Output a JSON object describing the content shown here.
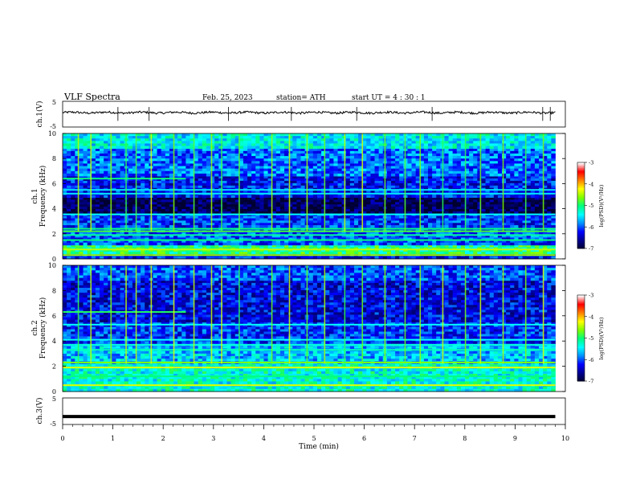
{
  "header": {
    "title": "VLF  Spectra",
    "date": "Feb. 25, 2023",
    "station": "station= ATH",
    "start_ut": "start  UT  =   4  : 30 : 1"
  },
  "panels": {
    "ch1": {
      "ylabel": "ch.1(V)",
      "ticks": [
        "5",
        "-5"
      ]
    },
    "spec1": {
      "ylabel_top": "ch.1",
      "ylabel_bottom": "Frequency  (kHz)",
      "ticks": [
        "10",
        "8",
        "6",
        "4",
        "2",
        "0"
      ]
    },
    "spec2": {
      "ylabel_top": "ch.2",
      "ylabel_bottom": "Frequency  (kHz)",
      "ticks": [
        "10",
        "8",
        "6",
        "4",
        "2",
        "0"
      ]
    },
    "ch3": {
      "ylabel": "ch.3(V)",
      "ticks": [
        "5",
        "-5"
      ]
    }
  },
  "xaxis": {
    "label": "Time  (min)",
    "ticks": [
      "0",
      "1",
      "2",
      "3",
      "4",
      "5",
      "6",
      "7",
      "8",
      "9",
      "10"
    ]
  },
  "colorbars": [
    {
      "label": "log(PSD)(V²/Hz)",
      "ticks": [
        "-3",
        "-4",
        "-5",
        "-6",
        "-7"
      ]
    },
    {
      "label": "log(PSD)(V²/Hz)",
      "ticks": [
        "-3",
        "-4",
        "-5",
        "-6",
        "-7"
      ]
    }
  ],
  "colors": {
    "colormap": [
      "#000030",
      "#000090",
      "#0000ff",
      "#0090ff",
      "#00ffff",
      "#00ff80",
      "#80ff00",
      "#ffff00",
      "#ff8000",
      "#ff0000",
      "#ffffff"
    ],
    "waveform": "#000000"
  },
  "chart_data": [
    {
      "type": "line",
      "panel": "ch.1(V)",
      "xlim": [
        0,
        10
      ],
      "ylim": [
        -5,
        5
      ],
      "x_range_data": [
        0,
        9.8
      ],
      "mean_level": 0.6,
      "noise_amplitude": 0.7,
      "spikes": [
        1.1,
        1.72,
        3.3,
        4.55,
        5.85,
        7.35,
        9.55,
        9.7
      ]
    },
    {
      "type": "heatmap",
      "panel": "ch.1 Frequency (kHz)",
      "xlim": [
        0,
        10
      ],
      "ylim": [
        0,
        10
      ],
      "x_range_data": [
        0,
        9.8
      ],
      "color_range_log_psd": [
        -7,
        -3
      ],
      "bands": [
        {
          "f_low": 0.0,
          "f_high": 0.4,
          "level": -6.2
        },
        {
          "f_low": 0.4,
          "f_high": 1.1,
          "level": -5.0
        },
        {
          "f_low": 1.1,
          "f_high": 2.5,
          "level": -6.0
        },
        {
          "f_low": 2.5,
          "f_high": 3.6,
          "level": -6.1
        },
        {
          "f_low": 3.6,
          "f_high": 4.9,
          "level": -6.85
        },
        {
          "f_low": 4.9,
          "f_high": 6.6,
          "level": -6.2
        },
        {
          "f_low": 6.6,
          "f_high": 8.8,
          "level": -5.9
        },
        {
          "f_low": 8.8,
          "f_high": 10.0,
          "level": -5.4
        }
      ],
      "lines": [
        {
          "freq": 0.3,
          "level": -4.5
        },
        {
          "freq": 0.75,
          "level": -4.4
        },
        {
          "freq": 1.5,
          "level": -5.0
        },
        {
          "freq": 1.9,
          "level": -5.1
        },
        {
          "freq": 2.2,
          "level": -4.8
        },
        {
          "freq": 2.4,
          "level": -5.0
        },
        {
          "freq": 3.55,
          "level": -5.4
        },
        {
          "freq": 5.2,
          "level": -5.5
        },
        {
          "freq": 5.5,
          "level": -5.5
        },
        {
          "freq": 6.4,
          "level": -5.0,
          "t_end": 2.45
        }
      ],
      "events": [
        0.3,
        0.55,
        0.95,
        1.25,
        1.45,
        1.75,
        2.2,
        2.6,
        2.95,
        3.15,
        3.5,
        4.15,
        4.5,
        4.85,
        5.2,
        5.6,
        5.95,
        6.4,
        6.8,
        7.1,
        7.55,
        8.0,
        8.3,
        8.75,
        9.2,
        9.55
      ]
    },
    {
      "type": "heatmap",
      "panel": "ch.2 Frequency (kHz)",
      "xlim": [
        0,
        10
      ],
      "ylim": [
        0,
        10
      ],
      "x_range_data": [
        0,
        9.8
      ],
      "color_range_log_psd": [
        -7,
        -3
      ],
      "bands": [
        {
          "f_low": 0.0,
          "f_high": 0.6,
          "level": -5.3
        },
        {
          "f_low": 0.6,
          "f_high": 2.2,
          "level": -5.3
        },
        {
          "f_low": 2.2,
          "f_high": 3.8,
          "level": -5.6
        },
        {
          "f_low": 3.8,
          "f_high": 5.5,
          "level": -6.1
        },
        {
          "f_low": 5.5,
          "f_high": 8.8,
          "level": -6.3
        },
        {
          "f_low": 8.8,
          "f_high": 10.0,
          "level": -6.0
        }
      ],
      "lines": [
        {
          "freq": 0.5,
          "level": -4.3
        },
        {
          "freq": 1.2,
          "level": -5.0
        },
        {
          "freq": 1.9,
          "level": -4.3
        },
        {
          "freq": 2.3,
          "level": -4.6
        },
        {
          "freq": 3.3,
          "level": -5.2
        },
        {
          "freq": 3.7,
          "level": -5.3
        },
        {
          "freq": 4.1,
          "level": -5.4
        },
        {
          "freq": 5.3,
          "level": -5.4
        },
        {
          "freq": 6.3,
          "level": -4.9,
          "t_end": 2.45
        }
      ],
      "events": [
        0.3,
        0.55,
        0.95,
        1.25,
        1.45,
        1.75,
        2.2,
        2.6,
        2.95,
        3.15,
        3.5,
        4.15,
        4.5,
        4.85,
        5.2,
        5.6,
        5.95,
        6.4,
        6.8,
        7.1,
        7.55,
        8.0,
        8.3,
        8.75,
        9.2,
        9.55
      ]
    },
    {
      "type": "line",
      "panel": "ch.3(V)",
      "xlim": [
        0,
        10
      ],
      "ylim": [
        -5,
        5
      ],
      "x_range_data": [
        0,
        9.8
      ],
      "mean_level": -2.0,
      "noise_amplitude": 0.0,
      "spikes": []
    }
  ]
}
